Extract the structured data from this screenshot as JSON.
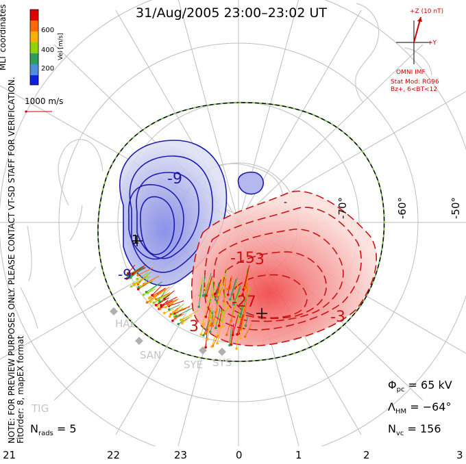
{
  "title": "31/Aug/2005 23:00–23:02 UT",
  "coordinates_label": "MLT coordinates",
  "note_line1": "NOTE: FOR PREVIEW PURPOSES ONLY. PLEASE CONTACT VT-SD STAFF FOR VERIFICATION.",
  "note_line2": "FitOrder: 8, mapEX format",
  "velocity_scale": {
    "label": "Vel [m/s]",
    "ticks": [
      "600",
      "400",
      "200"
    ],
    "reference_vector_label": "1000 m/s",
    "colors": [
      "#e00000",
      "#ff6a00",
      "#ffb000",
      "#8fd400",
      "#2ca05a",
      "#4f8fd8",
      "#1020e0"
    ]
  },
  "latitude_labels": [
    "-70°",
    "-60°",
    "-50°"
  ],
  "mlt_labels": [
    "21",
    "22",
    "23",
    "0",
    "1",
    "2",
    "3"
  ],
  "contour_labels": [
    "-9",
    "-9",
    "1",
    "-27",
    "-15",
    "-3",
    "3",
    "3",
    "-"
  ],
  "radars": [
    "HAL",
    "SAN",
    "SYE",
    "SYS",
    "TIG"
  ],
  "imf": {
    "z_label": "+Z (10 nT)",
    "y_label": "+Y",
    "source": "OMNI IMF",
    "model_line1": "Stat Mod: RG96",
    "model_line2": "Bz+, 6<BT<12"
  },
  "stats": {
    "phi_symbol": "Φ",
    "phi_sub": "pc",
    "phi_value": "= 65 kV",
    "lambda_symbol": "Λ",
    "lambda_sub": "HM",
    "lambda_value": "= −64°",
    "nvc_symbol": "N",
    "nvc_sub": "vc",
    "nvc_value": "= 156",
    "nrads_symbol": "N",
    "nrads_sub": "rads",
    "nrads_value": "= 5"
  },
  "colors": {
    "negative_potential": "#1a1ab0",
    "positive_potential": "#cc1010",
    "heppner_maynard": "#7ac943",
    "coastline": "#c8c8c8",
    "imf": "#cc0000"
  }
}
